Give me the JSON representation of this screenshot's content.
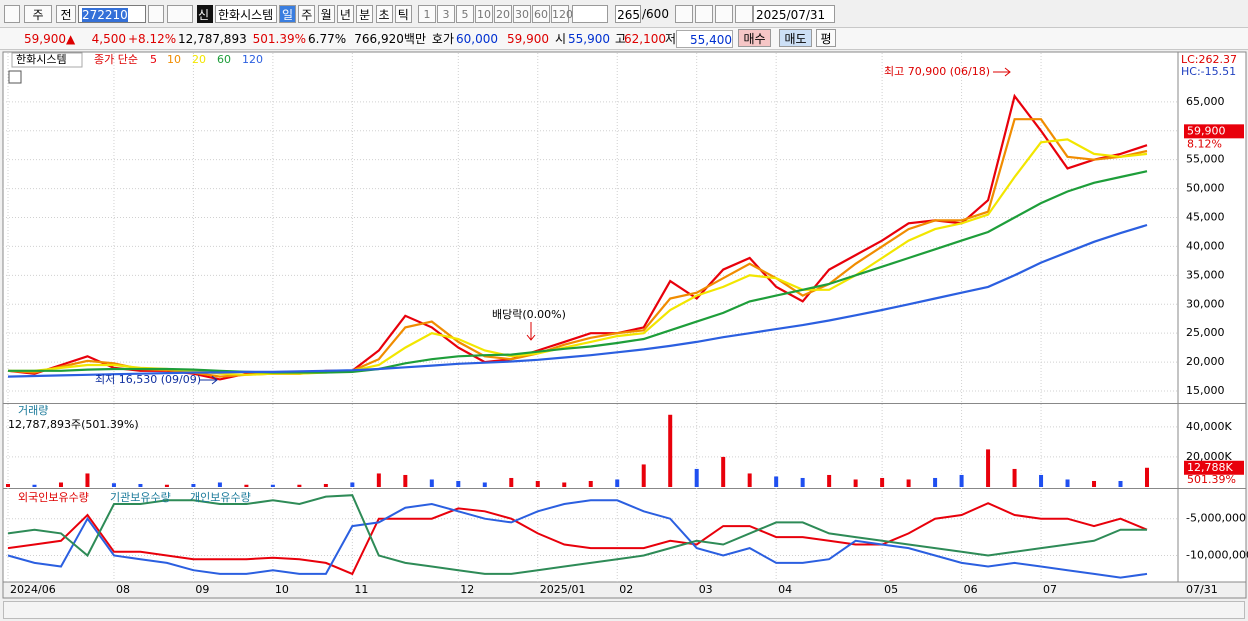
{
  "toolbar": {
    "market": "주",
    "compare": "전",
    "code": "272210",
    "credit": "신",
    "name": "한화시스템",
    "periods": [
      "일",
      "주",
      "월",
      "년",
      "분",
      "초",
      "틱"
    ],
    "intervals": [
      "1",
      "3",
      "5",
      "10",
      "20",
      "30",
      "60",
      "120"
    ],
    "count": "265",
    "max": "/600",
    "date": "2025/07/31"
  },
  "quote": {
    "price": "59,900",
    "arrow": "▲",
    "change": "4,500",
    "change_pct": "+8.12%",
    "volume": "12,787,893",
    "volume_pct": "501.39%",
    "turnover": "6.77%",
    "cap": "766,920백만",
    "ask_label": "호가",
    "ask": "60,000",
    "bid": "59,900",
    "open_label": "시",
    "open": "55,900",
    "high_label": "고",
    "high": "62,100",
    "low_label": "저",
    "low": "55,400",
    "buy": "매수",
    "sell": "매도",
    "avg": "평"
  },
  "chart_data": [
    {
      "type": "line",
      "title": "한화시스템",
      "legend_title": "종가 단순",
      "series": [
        {
          "name": "5",
          "color": "#e8000b",
          "values": [
            18500,
            18000,
            19500,
            21000,
            19000,
            18500,
            18500,
            18000,
            17000,
            18000,
            18000,
            18000,
            18500,
            18500,
            22000,
            28000,
            26000,
            22500,
            20000,
            20500,
            22000,
            23500,
            25000,
            25000,
            26000,
            34000,
            31000,
            36000,
            38000,
            33000,
            30500,
            36000,
            38500,
            41000,
            44000,
            44500,
            44000,
            48000,
            66000,
            60000,
            53500,
            55000,
            56000,
            57500
          ]
        },
        {
          "name": "10",
          "color": "#f08c00",
          "values": [
            18500,
            18200,
            19200,
            20200,
            19800,
            18800,
            18600,
            18200,
            17500,
            17800,
            18000,
            18000,
            18300,
            18500,
            20500,
            26000,
            27000,
            23500,
            21000,
            20500,
            21500,
            23000,
            24200,
            25000,
            25500,
            31000,
            32000,
            34500,
            37000,
            34500,
            31500,
            33500,
            37000,
            40000,
            43000,
            44500,
            44500,
            46000,
            62000,
            62000,
            55500,
            55000,
            55500,
            56500
          ]
        },
        {
          "name": "20",
          "color": "#f2e600",
          "values": [
            18500,
            18500,
            19000,
            19500,
            19500,
            19000,
            18800,
            18500,
            18000,
            17800,
            18000,
            18000,
            18200,
            18500,
            19500,
            22500,
            25000,
            24000,
            22000,
            21000,
            21500,
            22500,
            23500,
            24500,
            25000,
            29000,
            31500,
            33000,
            35000,
            34500,
            32500,
            32500,
            35000,
            38000,
            41000,
            43000,
            44000,
            45500,
            52000,
            58000,
            58500,
            56000,
            55500,
            56000
          ]
        },
        {
          "name": "60",
          "color": "#1e9e3a",
          "values": [
            18500,
            18500,
            18500,
            18700,
            18800,
            18800,
            18800,
            18700,
            18500,
            18300,
            18200,
            18200,
            18200,
            18300,
            18800,
            19800,
            20500,
            21000,
            21200,
            21300,
            21800,
            22300,
            22700,
            23300,
            24000,
            25500,
            27000,
            28500,
            30500,
            31500,
            32500,
            33500,
            35000,
            36500,
            38000,
            39500,
            41000,
            42500,
            45000,
            47500,
            49500,
            51000,
            52000,
            53000
          ]
        },
        {
          "name": "120",
          "color": "#2b5fe0",
          "values": [
            17500,
            17600,
            17700,
            17800,
            17900,
            18000,
            18100,
            18200,
            18200,
            18300,
            18300,
            18400,
            18500,
            18600,
            18800,
            19100,
            19400,
            19700,
            19900,
            20100,
            20400,
            20800,
            21200,
            21700,
            22200,
            22800,
            23500,
            24300,
            25000,
            25700,
            26400,
            27200,
            28100,
            29000,
            30000,
            31000,
            32000,
            33000,
            35000,
            37200,
            39000,
            40800,
            42300,
            43700
          ]
        }
      ],
      "ylim": [
        13100,
        73100
      ],
      "yticks": [
        {
          "value": 15000,
          "label": "15,000"
        },
        {
          "value": 20000,
          "label": "20,000"
        },
        {
          "value": 25000,
          "label": "25,000"
        },
        {
          "value": 30000,
          "label": "30,000"
        },
        {
          "value": 35000,
          "label": "35,000"
        },
        {
          "value": 40000,
          "label": "40,000"
        },
        {
          "value": 45000,
          "label": "45,000"
        },
        {
          "value": 50000,
          "label": "50,000"
        },
        {
          "value": 55000,
          "label": "55,000"
        },
        {
          "value": 60000,
          "label": "60,000"
        },
        {
          "value": 65000,
          "label": "65,000"
        }
      ],
      "grid": true,
      "high_label": "최고 70,900 (06/18)",
      "low_label": "최저 16,530 (09/09)",
      "dividend_label": "배당락(0.00%)",
      "lc": "LC:262.37",
      "hc": "HC:-15.51",
      "last": {
        "value": 59900,
        "label": "59,900"
      },
      "last_pct": "8.12%"
    },
    {
      "type": "bar",
      "title": "거래량",
      "subtitle": "12,787,893주(501.39%)",
      "values": [
        2000,
        1500,
        3000,
        9000,
        2500,
        2000,
        1500,
        2000,
        3000,
        1500,
        1500,
        1500,
        2000,
        3000,
        9000,
        8000,
        5000,
        4000,
        3000,
        6000,
        4000,
        3000,
        4000,
        5000,
        15000,
        48000,
        12000,
        20000,
        9000,
        7000,
        6000,
        8000,
        5000,
        6000,
        5000,
        6000,
        8000,
        25000,
        12000,
        8000,
        5000,
        4000,
        4000,
        12788
      ],
      "colors": [
        "#e8000b",
        "#1f4ff0",
        "#e8000b",
        "#e8000b",
        "#1f4ff0",
        "#1f4ff0",
        "#e8000b",
        "#1f4ff0",
        "#1f4ff0",
        "#e8000b",
        "#1f4ff0",
        "#e8000b",
        "#e8000b",
        "#1f4ff0",
        "#e8000b",
        "#e8000b",
        "#1f4ff0",
        "#1f4ff0",
        "#1f4ff0",
        "#e8000b",
        "#e8000b",
        "#e8000b",
        "#e8000b",
        "#1f4ff0",
        "#e8000b",
        "#e8000b",
        "#1f4ff0",
        "#e8000b",
        "#e8000b",
        "#1f4ff0",
        "#1f4ff0",
        "#e8000b",
        "#e8000b",
        "#e8000b",
        "#e8000b",
        "#1f4ff0",
        "#1f4ff0",
        "#e8000b",
        "#e8000b",
        "#1f4ff0",
        "#1f4ff0",
        "#e8000b",
        "#1f4ff0",
        "#e8000b"
      ],
      "ylim": [
        0,
        54500
      ],
      "yticks": [
        {
          "value": 20000,
          "label": "20,000K"
        },
        {
          "value": 40000,
          "label": "40,000K"
        }
      ],
      "last": {
        "value": 12788,
        "label": "12,788K"
      },
      "last_pct": "501.39%"
    },
    {
      "type": "line",
      "series": [
        {
          "name": "외국인보유수량",
          "color": "#e8000b",
          "values": [
            -9000000,
            -8500000,
            -8000000,
            -4500000,
            -9500000,
            -9500000,
            -10000000,
            -10500000,
            -10500000,
            -10500000,
            -10300000,
            -10500000,
            -11000000,
            -12500000,
            -5000000,
            -5000000,
            -5000000,
            -3600000,
            -4000000,
            -5000000,
            -7000000,
            -8500000,
            -9000000,
            -9000000,
            -9000000,
            -8000000,
            -8500000,
            -6000000,
            -6000000,
            -7500000,
            -7500000,
            -8000000,
            -8500000,
            -8500000,
            -7000000,
            -5000000,
            -4500000,
            -2900000,
            -4500000,
            -5000000,
            -5000000,
            -6000000,
            -5000000,
            -6500000
          ]
        },
        {
          "name": "기관보유수량",
          "color": "#2b5fe0",
          "values": [
            -10000000,
            -11000000,
            -11500000,
            -5000000,
            -10000000,
            -10500000,
            -11000000,
            -12000000,
            -12500000,
            -12500000,
            -12000000,
            -12500000,
            -12500000,
            -6000000,
            -5500000,
            -3500000,
            -3000000,
            -4000000,
            -5000000,
            -5500000,
            -4000000,
            -3000000,
            -2500000,
            -2500000,
            -4000000,
            -5000000,
            -9000000,
            -10000000,
            -9000000,
            -11000000,
            -11000000,
            -10500000,
            -8000000,
            -8500000,
            -9000000,
            -10000000,
            -11000000,
            -11500000,
            -11000000,
            -11500000,
            -12000000,
            -12500000,
            -13000000,
            -12500000
          ]
        },
        {
          "name": "개인보유수량",
          "color": "#2e8b57",
          "values": [
            -7000000,
            -6500000,
            -7000000,
            -10000000,
            -3000000,
            -3000000,
            -2500000,
            -2500000,
            -3000000,
            -3000000,
            -2500000,
            -3000000,
            -2000000,
            -1800000,
            -10000000,
            -11000000,
            -11500000,
            -12000000,
            -12500000,
            -12500000,
            -12000000,
            -11500000,
            -11000000,
            -10500000,
            -10000000,
            -9000000,
            -8000000,
            -8500000,
            -7000000,
            -5500000,
            -5500000,
            -7000000,
            -7500000,
            -8000000,
            -8500000,
            -9000000,
            -9500000,
            -10000000,
            -9500000,
            -9000000,
            -8500000,
            -8000000,
            -6500000,
            -6500000
          ]
        }
      ],
      "ylim": [
        -13600000,
        -1100000
      ],
      "yticks": [
        {
          "value": -10000000,
          "label": "-10,000,000"
        },
        {
          "value": -5000000,
          "label": "-5,000,000"
        }
      ],
      "categories": [
        "2024/06",
        null,
        null,
        null,
        "08",
        null,
        null,
        "09",
        null,
        null,
        "10",
        null,
        null,
        "11",
        null,
        null,
        null,
        "12",
        null,
        null,
        "2025/01",
        null,
        null,
        "02",
        null,
        null,
        "03",
        null,
        null,
        "04",
        null,
        null,
        null,
        "05",
        null,
        null,
        "06",
        null,
        null,
        "07",
        null,
        null,
        null,
        null
      ],
      "end_label": "07/31"
    }
  ]
}
